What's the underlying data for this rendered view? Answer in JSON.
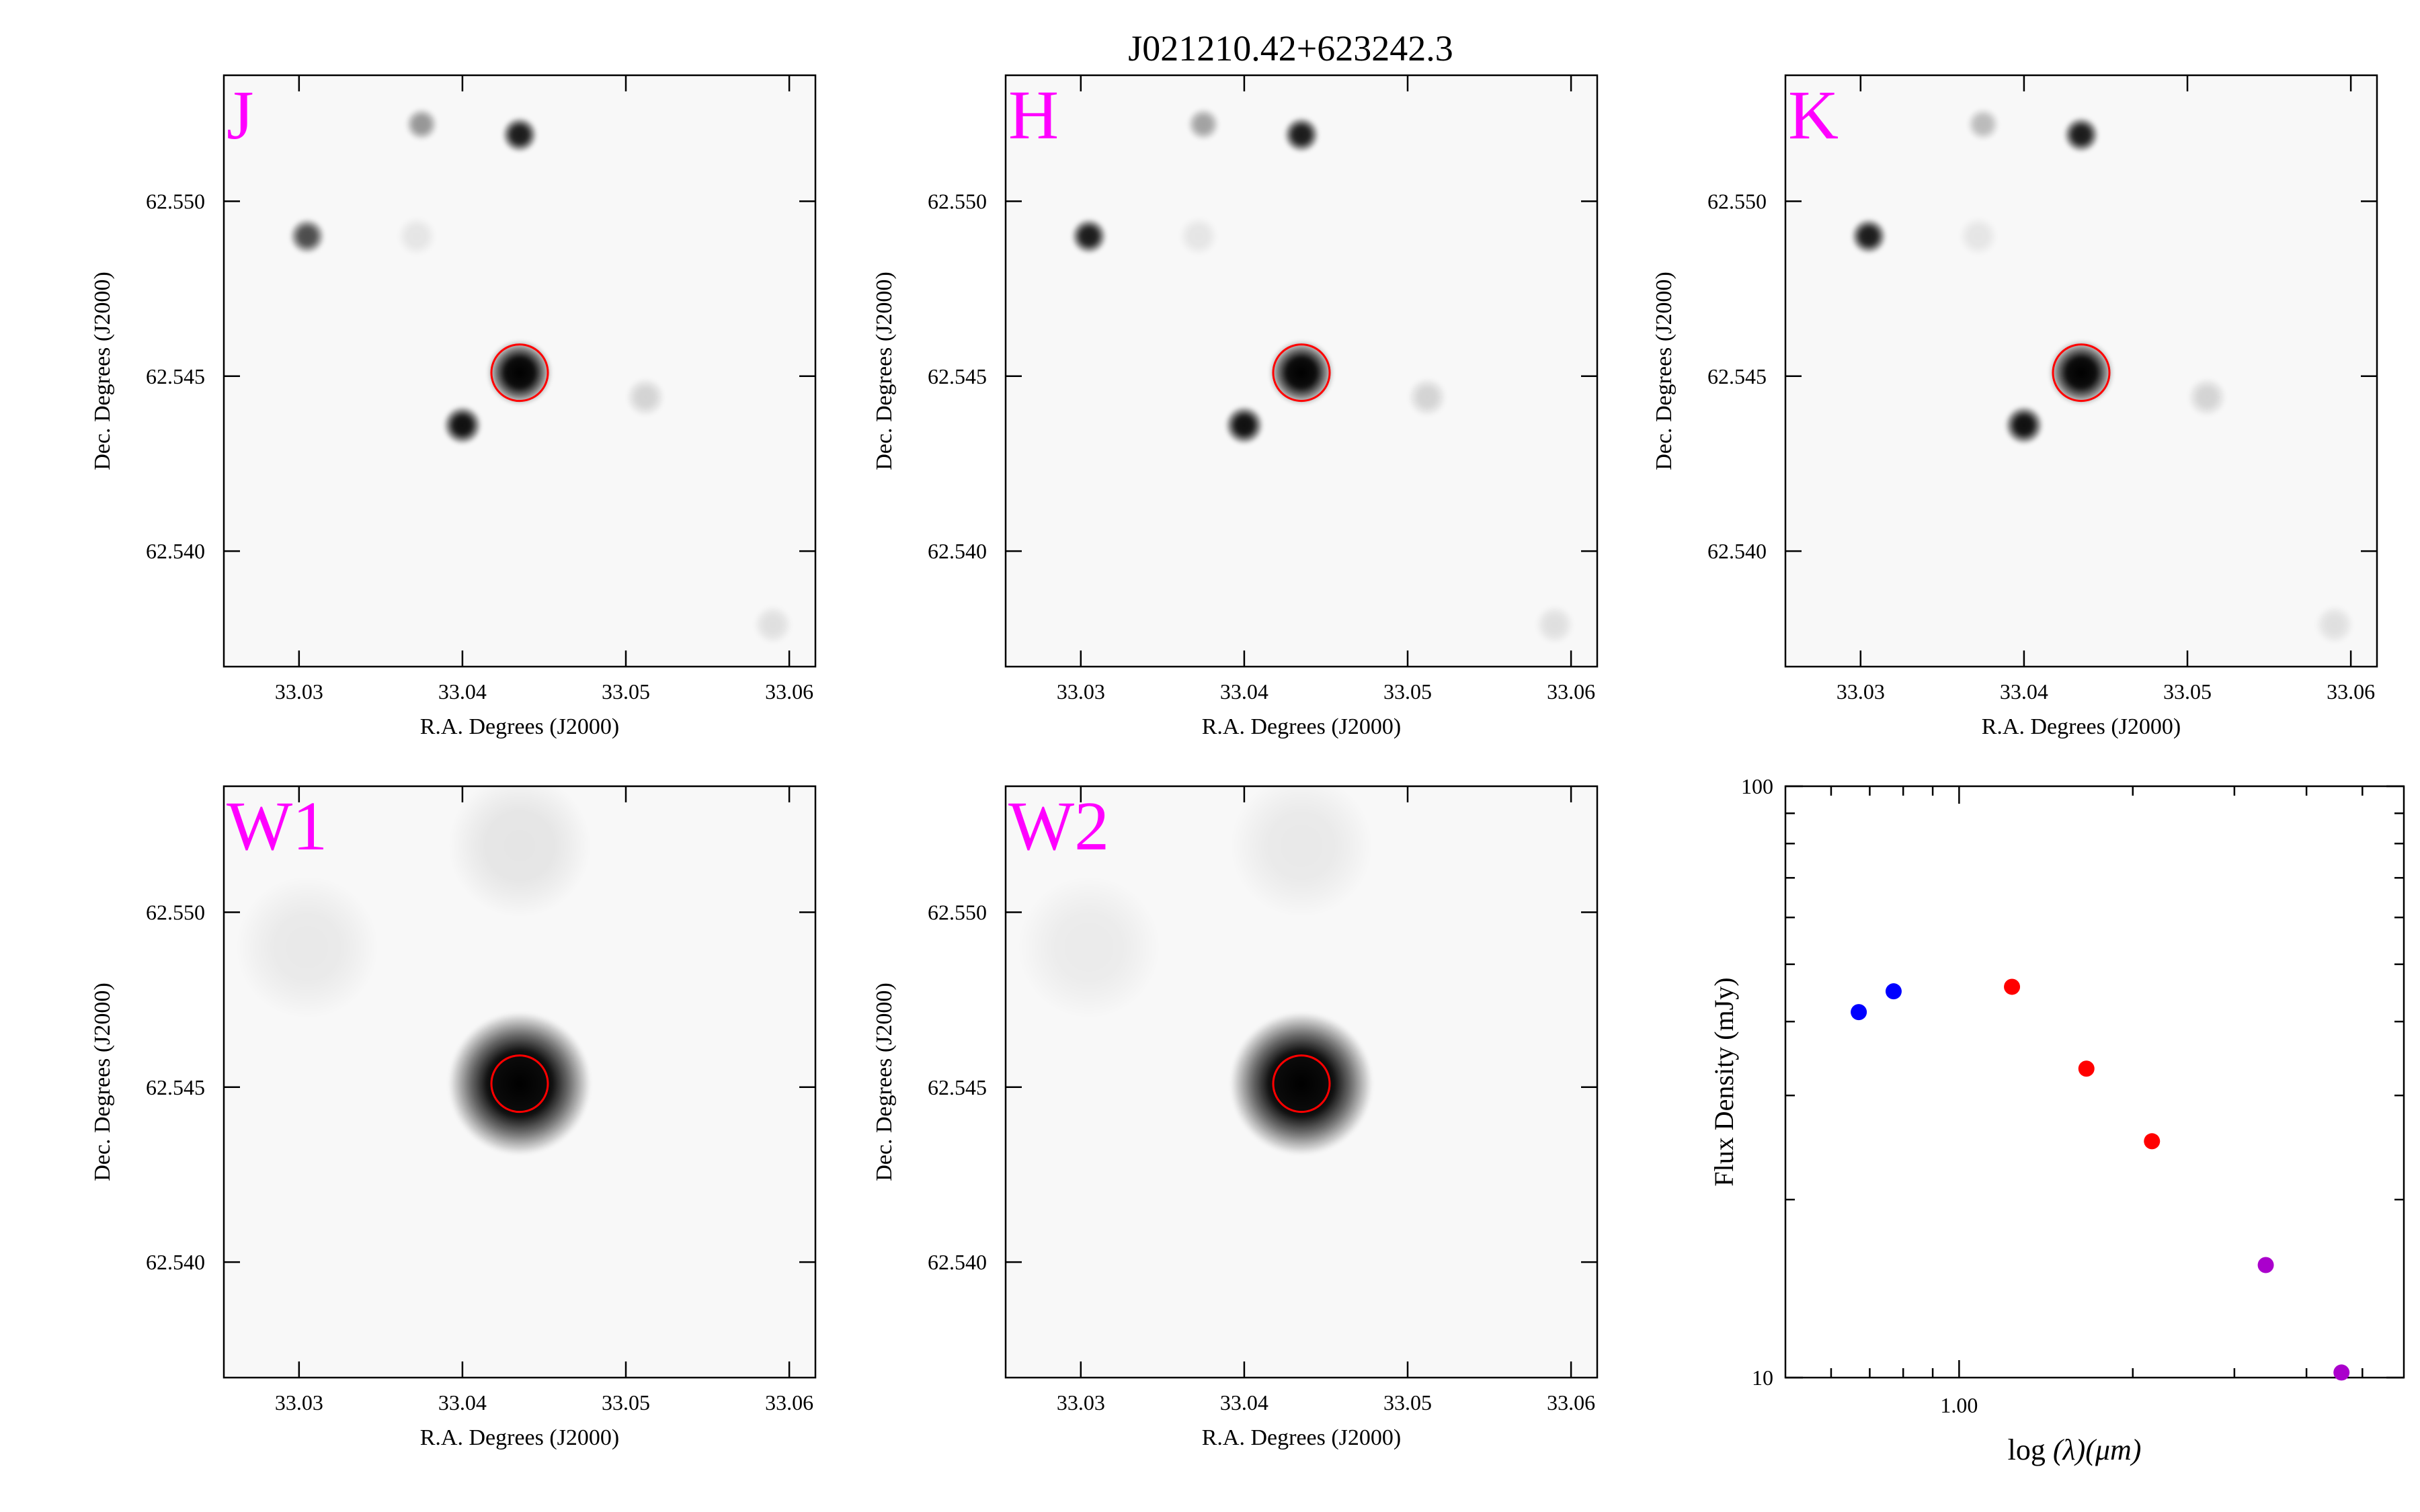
{
  "title": "J021210.42+623242.3",
  "chart_data": [
    {
      "type": "image",
      "panel": "J",
      "label": "J",
      "xlabel": "R.A. Degrees (J2000)",
      "ylabel": "Dec. Degrees (J2000)",
      "xlim": [
        33.0254,
        33.0616
      ],
      "ylim": [
        62.5367,
        62.5536
      ],
      "xticks": [
        "33.03",
        "33.04",
        "33.05",
        "33.06"
      ],
      "yticks": [
        "62.550",
        "62.545",
        "62.540"
      ],
      "target": {
        "ra": 33.0435,
        "dec": 62.5451
      },
      "sources": [
        {
          "ra": 33.0435,
          "dec": 62.5451,
          "strength": 1.0,
          "size": 1.0
        },
        {
          "ra": 33.04,
          "dec": 62.5436,
          "strength": 0.95,
          "size": 0.6
        },
        {
          "ra": 33.0435,
          "dec": 62.5519,
          "strength": 0.9,
          "size": 0.55
        },
        {
          "ra": 33.0305,
          "dec": 62.549,
          "strength": 0.7,
          "size": 0.55
        },
        {
          "ra": 33.0375,
          "dec": 62.5522,
          "strength": 0.4,
          "size": 0.5
        },
        {
          "ra": 33.0512,
          "dec": 62.5444,
          "strength": 0.15,
          "size": 0.6
        },
        {
          "ra": 33.059,
          "dec": 62.5379,
          "strength": 0.1,
          "size": 0.6
        },
        {
          "ra": 33.0372,
          "dec": 62.549,
          "strength": 0.08,
          "size": 0.6
        }
      ]
    },
    {
      "type": "image",
      "panel": "H",
      "label": "H",
      "xlabel": "R.A. Degrees (J2000)",
      "ylabel": "Dec. Degrees (J2000)",
      "xlim": [
        33.0254,
        33.0616
      ],
      "ylim": [
        62.5367,
        62.5536
      ],
      "xticks": [
        "33.03",
        "33.04",
        "33.05",
        "33.06"
      ],
      "yticks": [
        "62.550",
        "62.545",
        "62.540"
      ],
      "target": {
        "ra": 33.0435,
        "dec": 62.5451
      },
      "sources": [
        {
          "ra": 33.0435,
          "dec": 62.5451,
          "strength": 1.0,
          "size": 1.0
        },
        {
          "ra": 33.04,
          "dec": 62.5436,
          "strength": 0.95,
          "size": 0.6
        },
        {
          "ra": 33.0435,
          "dec": 62.5519,
          "strength": 0.9,
          "size": 0.55
        },
        {
          "ra": 33.0305,
          "dec": 62.549,
          "strength": 0.9,
          "size": 0.55
        },
        {
          "ra": 33.0375,
          "dec": 62.5522,
          "strength": 0.35,
          "size": 0.5
        },
        {
          "ra": 33.0512,
          "dec": 62.5444,
          "strength": 0.15,
          "size": 0.6
        },
        {
          "ra": 33.059,
          "dec": 62.5379,
          "strength": 0.1,
          "size": 0.6
        },
        {
          "ra": 33.0372,
          "dec": 62.549,
          "strength": 0.08,
          "size": 0.6
        }
      ]
    },
    {
      "type": "image",
      "panel": "K",
      "label": "K",
      "xlabel": "R.A. Degrees (J2000)",
      "ylabel": "Dec. Degrees (J2000)",
      "xlim": [
        33.0254,
        33.0616
      ],
      "ylim": [
        62.5367,
        62.5536
      ],
      "xticks": [
        "33.03",
        "33.04",
        "33.05",
        "33.06"
      ],
      "yticks": [
        "62.550",
        "62.545",
        "62.540"
      ],
      "target": {
        "ra": 33.0435,
        "dec": 62.5451
      },
      "sources": [
        {
          "ra": 33.0435,
          "dec": 62.5451,
          "strength": 1.0,
          "size": 1.0
        },
        {
          "ra": 33.04,
          "dec": 62.5436,
          "strength": 0.95,
          "size": 0.6
        },
        {
          "ra": 33.0435,
          "dec": 62.5519,
          "strength": 0.9,
          "size": 0.55
        },
        {
          "ra": 33.0305,
          "dec": 62.549,
          "strength": 0.9,
          "size": 0.55
        },
        {
          "ra": 33.0375,
          "dec": 62.5522,
          "strength": 0.25,
          "size": 0.5
        },
        {
          "ra": 33.0512,
          "dec": 62.5444,
          "strength": 0.15,
          "size": 0.6
        },
        {
          "ra": 33.059,
          "dec": 62.5379,
          "strength": 0.1,
          "size": 0.6
        },
        {
          "ra": 33.0372,
          "dec": 62.549,
          "strength": 0.08,
          "size": 0.6
        }
      ]
    },
    {
      "type": "image",
      "panel": "W1",
      "label": "W1",
      "xlabel": "R.A. Degrees (J2000)",
      "ylabel": "Dec. Degrees (J2000)",
      "xlim": [
        33.0254,
        33.0616
      ],
      "ylim": [
        62.5367,
        62.5536
      ],
      "xticks": [
        "33.03",
        "33.04",
        "33.05",
        "33.06"
      ],
      "yticks": [
        "62.550",
        "62.545",
        "62.540"
      ],
      "target": {
        "ra": 33.0435,
        "dec": 62.5451
      },
      "sources": [
        {
          "ra": 33.0435,
          "dec": 62.5451,
          "strength": 1.0,
          "size": 2.2
        },
        {
          "ra": 33.0435,
          "dec": 62.5519,
          "strength": 0.08,
          "size": 2.2
        },
        {
          "ra": 33.0305,
          "dec": 62.549,
          "strength": 0.06,
          "size": 2.2
        }
      ]
    },
    {
      "type": "image",
      "panel": "W2",
      "label": "W2",
      "xlabel": "R.A. Degrees (J2000)",
      "ylabel": "Dec. Degrees (J2000)",
      "xlim": [
        33.0254,
        33.0616
      ],
      "ylim": [
        62.5367,
        62.5536
      ],
      "xticks": [
        "33.03",
        "33.04",
        "33.05",
        "33.06"
      ],
      "yticks": [
        "62.550",
        "62.545",
        "62.540"
      ],
      "target": {
        "ra": 33.0435,
        "dec": 62.5451
      },
      "sources": [
        {
          "ra": 33.0435,
          "dec": 62.5451,
          "strength": 1.0,
          "size": 2.2
        },
        {
          "ra": 33.0435,
          "dec": 62.5519,
          "strength": 0.06,
          "size": 2.2
        },
        {
          "ra": 33.0305,
          "dec": 62.549,
          "strength": 0.05,
          "size": 2.2
        }
      ]
    },
    {
      "type": "scatter",
      "panel": "SED",
      "xlabel_prefix": "log",
      "xlabel_suffix": "(λ)(μm)",
      "ylabel": "Flux Density (mJy)",
      "xscale": "log",
      "yscale": "log",
      "xlim": [
        0.5,
        5.9
      ],
      "ylim": [
        10,
        100
      ],
      "xticks": [
        {
          "value": 1.0,
          "label": "1.00"
        }
      ],
      "yticks": [
        {
          "value": 100,
          "label": "100"
        },
        {
          "value": 10,
          "label": "10"
        }
      ],
      "points": [
        {
          "x": 0.67,
          "y": 41.5,
          "color": "#0000ff"
        },
        {
          "x": 0.77,
          "y": 45.0,
          "color": "#0000ff"
        },
        {
          "x": 1.235,
          "y": 45.8,
          "color": "#ff0000"
        },
        {
          "x": 1.662,
          "y": 33.3,
          "color": "#ff0000"
        },
        {
          "x": 2.159,
          "y": 25.1,
          "color": "#ff0000"
        },
        {
          "x": 3.4,
          "y": 15.5,
          "color": "#aa00cc"
        },
        {
          "x": 4.6,
          "y": 10.2,
          "color": "#aa00cc"
        }
      ]
    }
  ]
}
